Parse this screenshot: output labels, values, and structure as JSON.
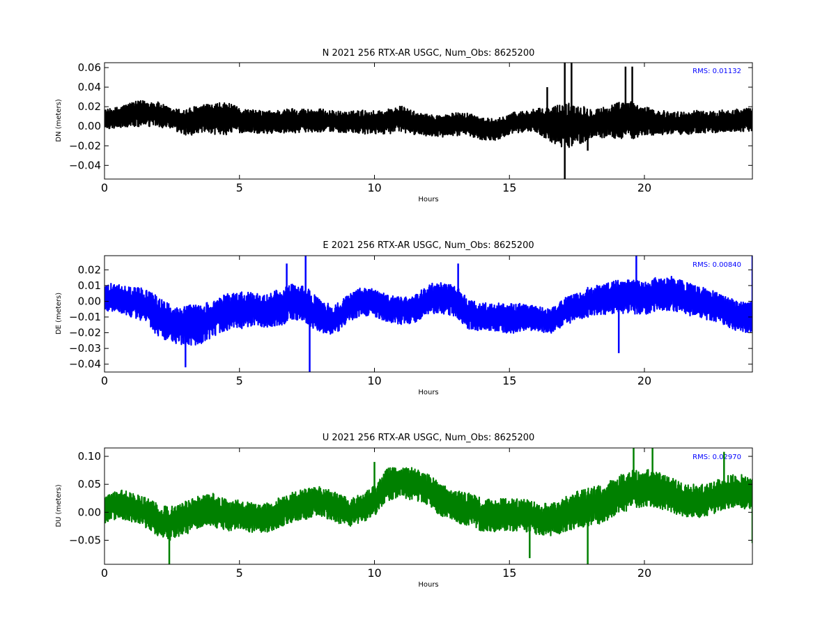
{
  "chart_data": [
    {
      "type": "line",
      "title": "N 2021 256 RTX-AR  USGC, Num_Obs: 8625200",
      "xlabel": "Hours",
      "ylabel": "DN (meters)",
      "xlim": [
        0,
        24
      ],
      "ylim": [
        -0.054,
        0.065
      ],
      "x_ticks": [
        0,
        5,
        10,
        15,
        20
      ],
      "y_ticks": [
        -0.04,
        -0.02,
        0.0,
        0.02,
        0.04,
        0.06
      ],
      "y_tick_labels": [
        "−0.04",
        "−0.02",
        "0.00",
        "0.02",
        "0.04",
        "0.06"
      ],
      "grid": false,
      "annotation": "RMS:  0.01132",
      "annotation_color": "#0000ff",
      "series": [
        {
          "color": "#000000",
          "x": [
            0,
            0.5,
            1,
            1.5,
            2,
            2.5,
            3,
            3.5,
            4,
            4.5,
            5,
            5.5,
            6,
            6.5,
            7,
            7.5,
            8,
            8.5,
            9,
            9.5,
            10,
            10.5,
            11,
            11.5,
            12,
            12.5,
            13,
            13.5,
            14,
            14.5,
            15,
            15.5,
            16,
            16.5,
            17,
            17.5,
            18,
            18.5,
            19,
            19.5,
            20,
            20.5,
            21,
            21.5,
            22,
            22.5,
            23,
            23.5,
            24
          ],
          "center": [
            0.007,
            0.009,
            0.012,
            0.013,
            0.012,
            0.007,
            0.004,
            0.007,
            0.007,
            0.008,
            0.006,
            0.005,
            0.004,
            0.005,
            0.006,
            0.006,
            0.006,
            0.005,
            0.004,
            0.004,
            0.004,
            0.005,
            0.007,
            0.003,
            0.001,
            0.0,
            0.002,
            0.002,
            -0.002,
            -0.004,
            0.003,
            0.005,
            0.006,
            0.002,
            0.0,
            0.002,
            0.003,
            0.004,
            0.006,
            0.006,
            0.005,
            0.004,
            0.003,
            0.003,
            0.005,
            0.004,
            0.006,
            0.006,
            0.007
          ],
          "spread": [
            0.01,
            0.011,
            0.013,
            0.014,
            0.013,
            0.011,
            0.014,
            0.015,
            0.016,
            0.017,
            0.013,
            0.012,
            0.012,
            0.012,
            0.013,
            0.012,
            0.012,
            0.011,
            0.011,
            0.013,
            0.012,
            0.013,
            0.014,
            0.012,
            0.011,
            0.012,
            0.012,
            0.012,
            0.012,
            0.011,
            0.011,
            0.011,
            0.012,
            0.018,
            0.024,
            0.022,
            0.016,
            0.016,
            0.019,
            0.02,
            0.015,
            0.013,
            0.012,
            0.012,
            0.012,
            0.011,
            0.012,
            0.012,
            0.012
          ],
          "spikes": [
            {
              "x": 17.05,
              "y": 0.065
            },
            {
              "x": 17.05,
              "y": -0.054
            },
            {
              "x": 17.3,
              "y": 0.065
            },
            {
              "x": 16.4,
              "y": 0.04
            },
            {
              "x": 19.3,
              "y": 0.061
            },
            {
              "x": 19.55,
              "y": 0.061
            },
            {
              "x": 16.2,
              "y": -0.01
            },
            {
              "x": 17.9,
              "y": -0.025
            }
          ]
        }
      ]
    },
    {
      "type": "line",
      "title": "E 2021 256 RTX-AR  USGC, Num_Obs: 8625200",
      "xlabel": "Hours",
      "ylabel": "DE (meters)",
      "xlim": [
        0,
        24
      ],
      "ylim": [
        -0.045,
        0.029
      ],
      "x_ticks": [
        0,
        5,
        10,
        15,
        20
      ],
      "y_ticks": [
        -0.04,
        -0.03,
        -0.02,
        -0.01,
        0.0,
        0.01,
        0.02
      ],
      "y_tick_labels": [
        "−0.04",
        "−0.03",
        "−0.02",
        "−0.01",
        "0.00",
        "0.01",
        "0.02"
      ],
      "grid": false,
      "annotation": "RMS:  0.00840",
      "annotation_color": "#0000ff",
      "series": [
        {
          "color": "#0000ff",
          "x": [
            0,
            0.5,
            1,
            1.5,
            2,
            2.5,
            3,
            3.5,
            4,
            4.5,
            5,
            5.5,
            6,
            6.5,
            7,
            7.5,
            8,
            8.5,
            9,
            9.5,
            10,
            10.5,
            11,
            11.5,
            12,
            12.5,
            13,
            13.5,
            14,
            14.5,
            15,
            15.5,
            16,
            16.5,
            17,
            17.5,
            18,
            18.5,
            19,
            19.5,
            20,
            20.5,
            21,
            21.5,
            22,
            22.5,
            23,
            23.5,
            24
          ],
          "center": [
            0.003,
            0.002,
            -0.001,
            -0.002,
            -0.01,
            -0.014,
            -0.015,
            -0.015,
            -0.011,
            -0.007,
            -0.006,
            -0.005,
            -0.006,
            -0.004,
            0.0,
            -0.003,
            -0.01,
            -0.012,
            -0.005,
            0.0,
            -0.001,
            -0.005,
            -0.006,
            -0.005,
            0.002,
            0.002,
            0.0,
            -0.008,
            -0.01,
            -0.01,
            -0.011,
            -0.01,
            -0.011,
            -0.013,
            -0.007,
            -0.004,
            0.0,
            0.001,
            0.003,
            0.003,
            0.002,
            0.005,
            0.005,
            0.002,
            0.0,
            -0.003,
            -0.006,
            -0.01,
            -0.01
          ],
          "spread": [
            0.009,
            0.009,
            0.01,
            0.011,
            0.013,
            0.013,
            0.013,
            0.013,
            0.012,
            0.012,
            0.012,
            0.011,
            0.011,
            0.012,
            0.012,
            0.012,
            0.011,
            0.01,
            0.009,
            0.009,
            0.009,
            0.009,
            0.009,
            0.009,
            0.01,
            0.01,
            0.01,
            0.01,
            0.009,
            0.009,
            0.01,
            0.009,
            0.008,
            0.008,
            0.009,
            0.009,
            0.01,
            0.01,
            0.011,
            0.011,
            0.011,
            0.011,
            0.011,
            0.011,
            0.01,
            0.01,
            0.01,
            0.01,
            0.01
          ],
          "spikes": [
            {
              "x": 7.45,
              "y": 0.029
            },
            {
              "x": 7.6,
              "y": -0.045
            },
            {
              "x": 6.75,
              "y": 0.024
            },
            {
              "x": 3.0,
              "y": -0.042
            },
            {
              "x": 19.7,
              "y": 0.029
            },
            {
              "x": 19.05,
              "y": -0.033
            },
            {
              "x": 24.0,
              "y": 0.029
            },
            {
              "x": 13.1,
              "y": 0.024
            }
          ]
        }
      ]
    },
    {
      "type": "line",
      "title": "U 2021 256 RTX-AR  USGC, Num_Obs: 8625200",
      "xlabel": "Hours",
      "ylabel": "DU (meters)",
      "xlim": [
        0,
        24
      ],
      "ylim": [
        -0.093,
        0.115
      ],
      "x_ticks": [
        0,
        5,
        10,
        15,
        20
      ],
      "y_ticks": [
        -0.05,
        0.0,
        0.05,
        0.1
      ],
      "y_tick_labels": [
        "−0.05",
        "0.00",
        "0.05",
        "0.10"
      ],
      "grid": false,
      "annotation": "RMS:  0.02970",
      "annotation_color": "#0000ff",
      "series": [
        {
          "color": "#008000",
          "x": [
            0,
            0.5,
            1,
            1.5,
            2,
            2.5,
            3,
            3.5,
            4,
            4.5,
            5,
            5.5,
            6,
            6.5,
            7,
            7.5,
            8,
            8.5,
            9,
            9.5,
            10,
            10.5,
            11,
            11.5,
            12,
            12.5,
            13,
            13.5,
            14,
            14.5,
            15,
            15.5,
            16,
            16.5,
            17,
            17.5,
            18,
            18.5,
            19,
            19.5,
            20,
            20.5,
            21,
            21.5,
            22,
            22.5,
            23,
            23.5,
            24
          ],
          "center": [
            0.005,
            0.015,
            0.01,
            0.0,
            -0.015,
            -0.02,
            -0.01,
            0.0,
            0.005,
            -0.005,
            -0.005,
            -0.01,
            -0.01,
            0.0,
            0.01,
            0.015,
            0.02,
            0.01,
            0.0,
            0.005,
            0.02,
            0.05,
            0.055,
            0.05,
            0.04,
            0.02,
            0.01,
            0.005,
            -0.005,
            -0.005,
            -0.005,
            -0.005,
            -0.01,
            -0.015,
            -0.005,
            0.005,
            0.01,
            0.015,
            0.03,
            0.04,
            0.045,
            0.04,
            0.03,
            0.02,
            0.02,
            0.025,
            0.035,
            0.04,
            0.03
          ],
          "spread": [
            0.025,
            0.027,
            0.027,
            0.027,
            0.03,
            0.032,
            0.03,
            0.03,
            0.03,
            0.03,
            0.027,
            0.027,
            0.027,
            0.028,
            0.028,
            0.028,
            0.027,
            0.027,
            0.027,
            0.027,
            0.028,
            0.03,
            0.03,
            0.029,
            0.028,
            0.03,
            0.03,
            0.03,
            0.03,
            0.03,
            0.03,
            0.03,
            0.03,
            0.03,
            0.031,
            0.033,
            0.035,
            0.035,
            0.035,
            0.035,
            0.035,
            0.033,
            0.032,
            0.031,
            0.03,
            0.03,
            0.03,
            0.03,
            0.03
          ],
          "spikes": [
            {
              "x": 2.4,
              "y": -0.093
            },
            {
              "x": 17.9,
              "y": -0.093
            },
            {
              "x": 19.6,
              "y": 0.115
            },
            {
              "x": 20.3,
              "y": 0.115
            },
            {
              "x": 22.95,
              "y": 0.108
            },
            {
              "x": 24.0,
              "y": -0.055
            },
            {
              "x": 10.0,
              "y": 0.09
            },
            {
              "x": 15.75,
              "y": -0.082
            }
          ]
        }
      ]
    }
  ]
}
